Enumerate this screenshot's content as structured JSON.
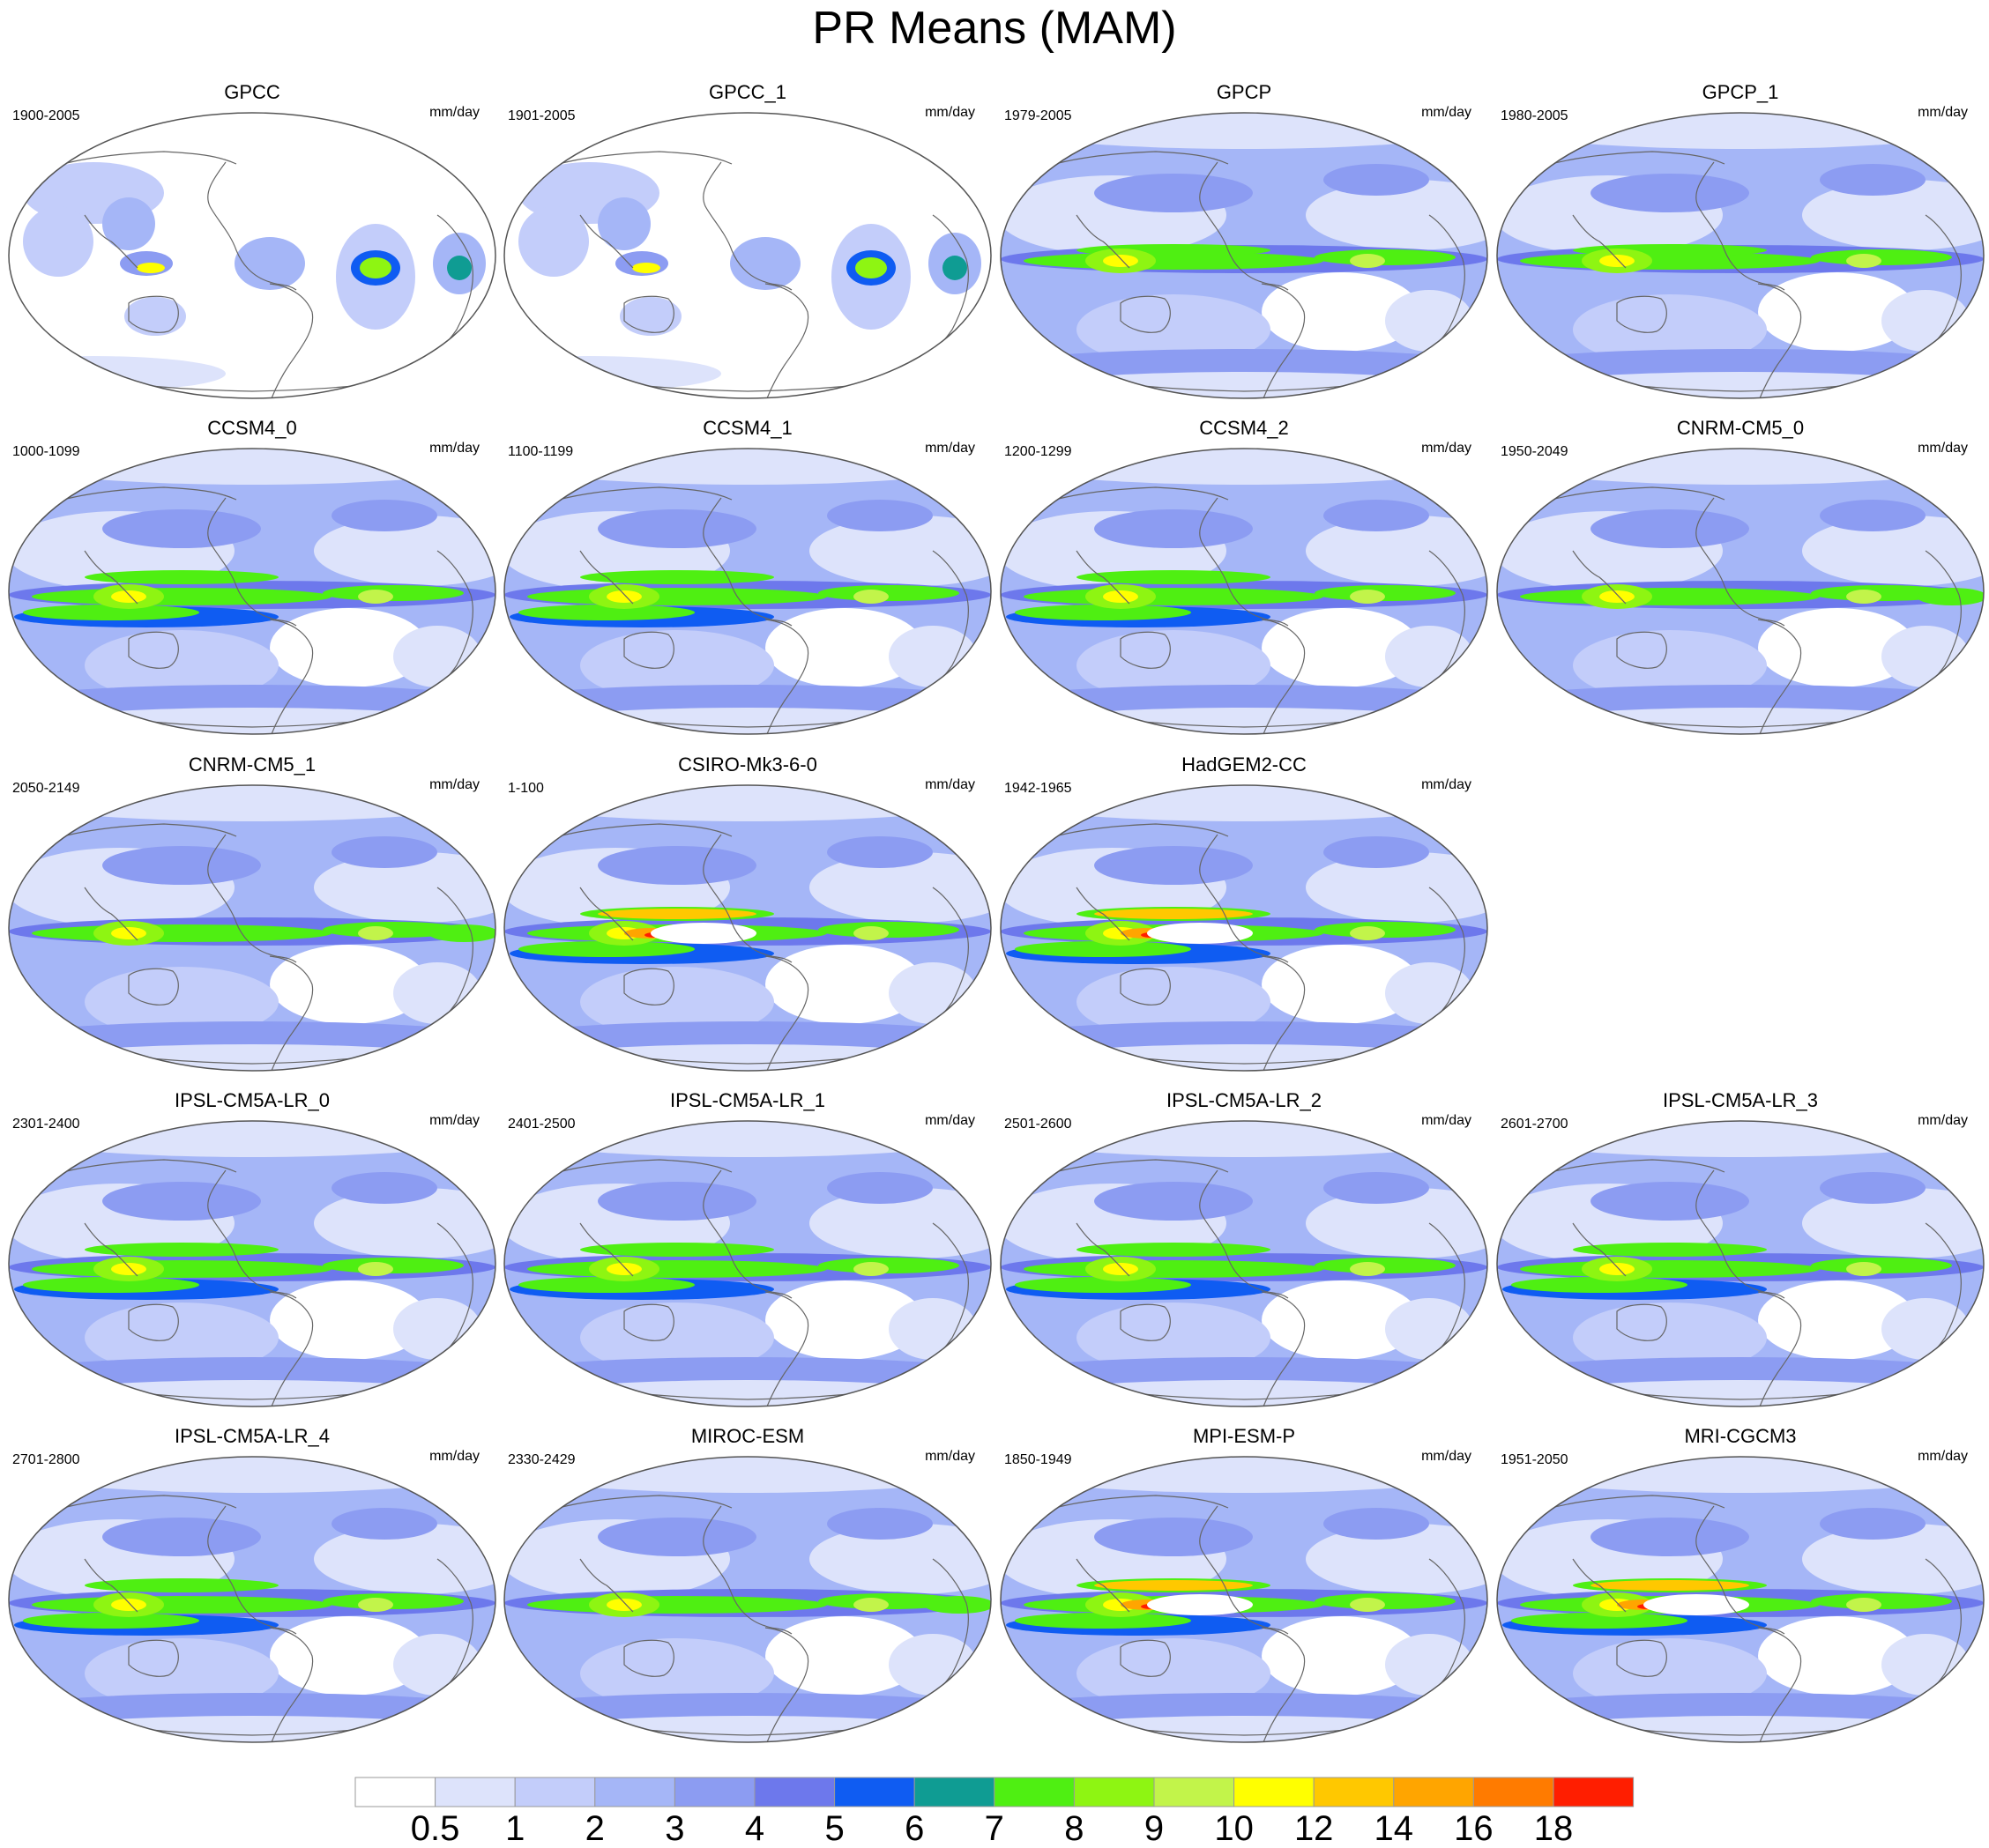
{
  "title": "PR Means (MAM)",
  "units": "mm/day",
  "panels": [
    {
      "name": "GPCC",
      "period": "1900-2005",
      "style": "land"
    },
    {
      "name": "GPCC_1",
      "period": "1901-2005",
      "style": "land"
    },
    {
      "name": "GPCP",
      "period": "1979-2005",
      "style": "obs"
    },
    {
      "name": "GPCP_1",
      "period": "1980-2005",
      "style": "obs"
    },
    {
      "name": "CCSM4_0",
      "period": "1000-1099",
      "style": "double"
    },
    {
      "name": "CCSM4_1",
      "period": "1100-1199",
      "style": "double"
    },
    {
      "name": "CCSM4_2",
      "period": "1200-1299",
      "style": "double"
    },
    {
      "name": "CNRM-CM5_0",
      "period": "1950-2049",
      "style": "model"
    },
    {
      "name": "CNRM-CM5_1",
      "period": "2050-2149",
      "style": "model"
    },
    {
      "name": "CSIRO-Mk3-6-0",
      "period": "1-100",
      "style": "strong"
    },
    {
      "name": "HadGEM2-CC",
      "period": "1942-1965",
      "style": "strong"
    },
    {
      "name": "IPSL-CM5A-LR_0",
      "period": "2301-2400",
      "style": "double"
    },
    {
      "name": "IPSL-CM5A-LR_1",
      "period": "2401-2500",
      "style": "double"
    },
    {
      "name": "IPSL-CM5A-LR_2",
      "period": "2501-2600",
      "style": "double"
    },
    {
      "name": "IPSL-CM5A-LR_3",
      "period": "2601-2700",
      "style": "double"
    },
    {
      "name": "IPSL-CM5A-LR_4",
      "period": "2701-2800",
      "style": "double"
    },
    {
      "name": "MIROC-ESM",
      "period": "2330-2429",
      "style": "model"
    },
    {
      "name": "MPI-ESM-P",
      "period": "1850-1949",
      "style": "strong"
    },
    {
      "name": "MRI-CGCM3",
      "period": "1951-2050",
      "style": "strong"
    }
  ],
  "colorbar": {
    "labels": [
      "0.5",
      "1",
      "2",
      "3",
      "4",
      "5",
      "6",
      "7",
      "8",
      "9",
      "10",
      "12",
      "14",
      "16",
      "18"
    ],
    "colors": [
      "#ffffff",
      "#dde3fb",
      "#c3cdfa",
      "#a5b6f7",
      "#8c9cf2",
      "#6d78ec",
      "#0f5cf2",
      "#0f9c93",
      "#4fef12",
      "#8ef512",
      "#c2f44a",
      "#ffff00",
      "#ffc800",
      "#ffa500",
      "#ff7b00",
      "#ff1e00"
    ]
  }
}
